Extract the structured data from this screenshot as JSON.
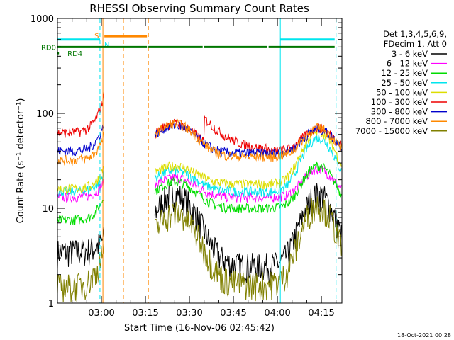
{
  "chart_data": {
    "type": "line",
    "title": "RHESSI Observing Summary Count Rates",
    "xlabel": "Start Time (16-Nov-06 02:45:42)",
    "ylabel": "Count Rate (s⁻¹ detector⁻¹)",
    "y_scale": "log",
    "ylim": [
      1,
      1000
    ],
    "y_ticks": [
      {
        "value": 1,
        "label": "1"
      },
      {
        "value": 10,
        "label": "10"
      },
      {
        "value": 100,
        "label": "100"
      },
      {
        "value": 1000,
        "label": "1000"
      }
    ],
    "x_range_minutes": [
      0,
      97
    ],
    "x_ticks": [
      {
        "minute": 15,
        "label": "03:00"
      },
      {
        "minute": 30,
        "label": "03:15"
      },
      {
        "minute": 45,
        "label": "03:30"
      },
      {
        "minute": 60,
        "label": "03:45"
      },
      {
        "minute": 75,
        "label": "04:00"
      },
      {
        "minute": 90,
        "label": "04:15"
      }
    ],
    "legend_header": [
      "Det 1,3,4,5,6,9,",
      "FDecim 1, Att 0"
    ],
    "series": [
      {
        "name": "3 - 6 keV",
        "color": "#000000",
        "base": 3.5,
        "night": 2.5,
        "peak1": 5,
        "bump1": 14,
        "bump2": 14
      },
      {
        "name": "6 - 12 keV",
        "color": "#ff00ff",
        "base": 13,
        "night": 13,
        "peak1": 20,
        "bump1": 21,
        "bump2": 26
      },
      {
        "name": "12 - 25 keV",
        "color": "#00dd00",
        "base": 7.5,
        "night": 10,
        "peak1": 14,
        "bump1": 19,
        "bump2": 28
      },
      {
        "name": "25 - 50 keV",
        "color": "#00e5ee",
        "base": 15,
        "night": 15,
        "peak1": 24,
        "bump1": 25,
        "bump2": 55
      },
      {
        "name": "50 - 100 keV",
        "color": "#dddd00",
        "base": 16,
        "night": 18,
        "peak1": 28,
        "bump1": 28,
        "bump2": 65
      },
      {
        "name": "100 - 300 keV",
        "color": "#ee0000",
        "base": 62,
        "night": 40,
        "peak1": 160,
        "bump1": 78,
        "bump2": 70
      },
      {
        "name": "300 - 800 keV",
        "color": "#0000cc",
        "base": 40,
        "night": 38,
        "peak1": 80,
        "bump1": 75,
        "bump2": 68
      },
      {
        "name": "800 - 7000 keV",
        "color": "#ff8800",
        "base": 32,
        "night": 35,
        "peak1": 60,
        "bump1": 78,
        "bump2": 70
      },
      {
        "name": "7000 - 15000 keV",
        "color": "#808000",
        "base": 1.5,
        "night": 1.6,
        "peak1": 4,
        "bump1": 9,
        "bump2": 11
      }
    ],
    "data_gaps_minutes": [
      [
        16,
        33
      ]
    ],
    "vertical_markers": [
      {
        "minute": 14.5,
        "color": "#00e5ee",
        "style": "dash"
      },
      {
        "minute": 15.5,
        "color": "#ff8800",
        "style": "solid"
      },
      {
        "minute": 22.5,
        "color": "#ff8800",
        "style": "dash"
      },
      {
        "minute": 31,
        "color": "#ff8800",
        "style": "dash"
      },
      {
        "minute": 76,
        "color": "#00e5ee",
        "style": "solid"
      },
      {
        "minute": 95,
        "color": "#00e5ee",
        "style": "dash"
      }
    ],
    "flags": [
      {
        "label": "S",
        "color": "#ff8800",
        "segments": [
          [
            16,
            31
          ]
        ],
        "level": 650
      },
      {
        "label": "N",
        "color": "#00e5ee",
        "segments": [
          [
            0,
            15
          ],
          [
            76,
            95
          ]
        ],
        "level": 600
      },
      {
        "label": "RD0",
        "color": "#007700",
        "segments": [
          [
            0,
            31
          ],
          [
            31,
            50
          ],
          [
            50,
            72
          ],
          [
            72,
            95
          ]
        ],
        "level": 500
      },
      {
        "label": "RD4",
        "color": "#007700",
        "segments": [
          [
            0,
            1
          ]
        ],
        "level": 430
      }
    ],
    "annotations": [
      "S",
      "N",
      "RD0",
      "RD4"
    ]
  },
  "timestamp": "18-Oct-2021 00:28"
}
